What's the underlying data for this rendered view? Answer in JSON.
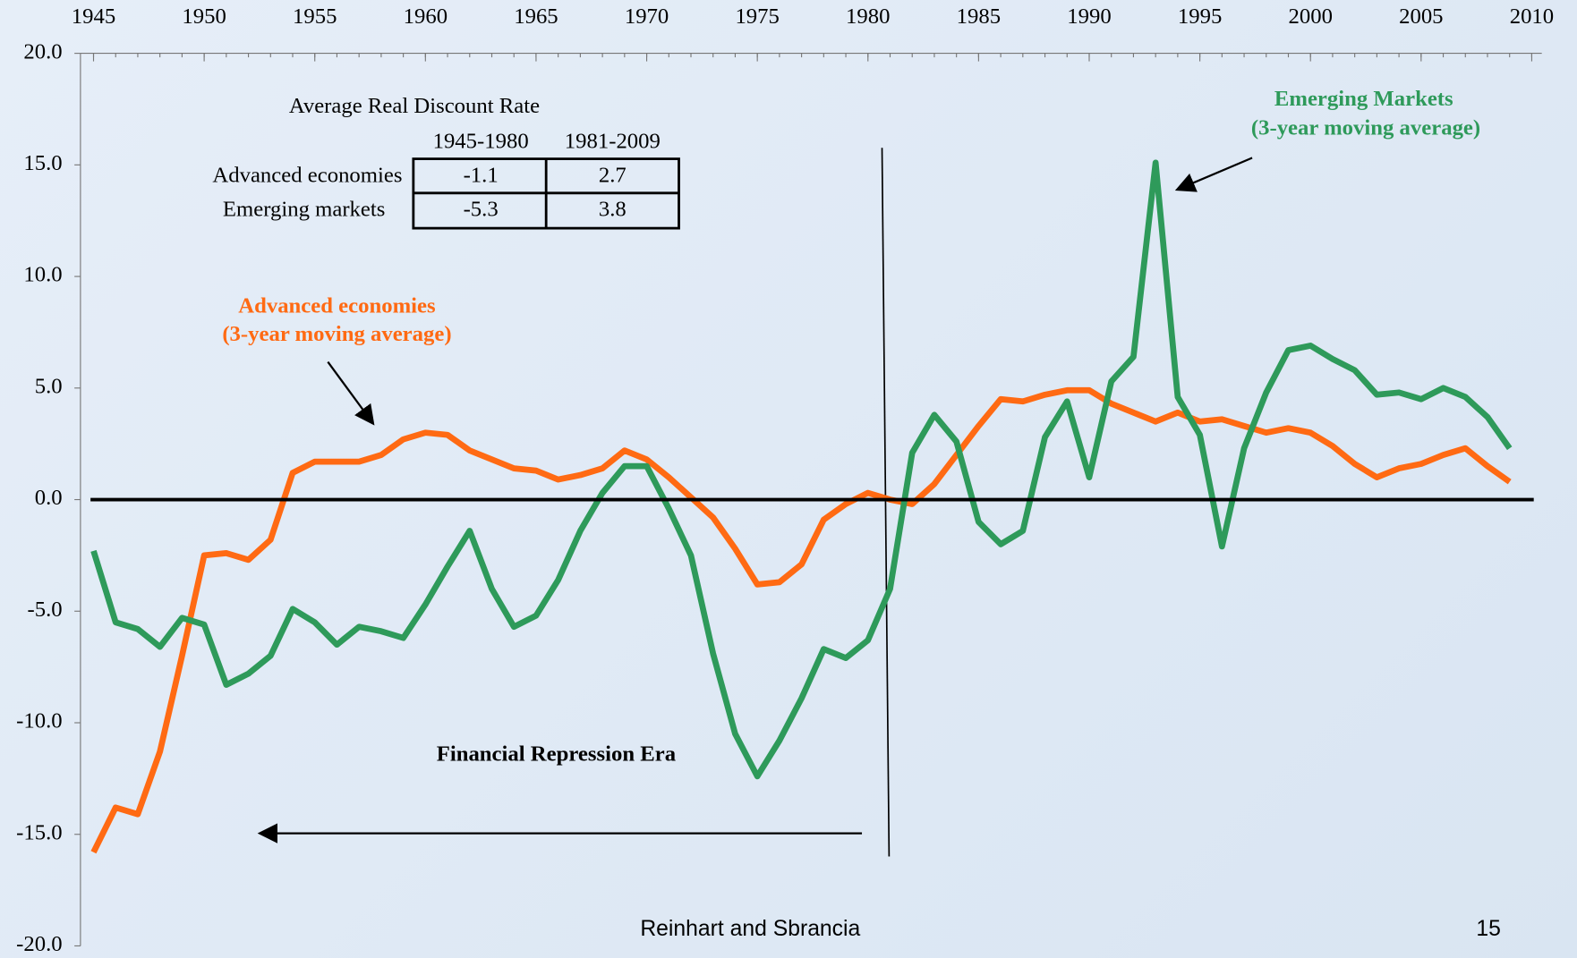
{
  "chart_data": {
    "type": "line",
    "xlim": [
      1945,
      2010
    ],
    "xticks": [
      1945,
      1950,
      1955,
      1960,
      1965,
      1970,
      1975,
      1980,
      1985,
      1990,
      1995,
      2000,
      2005,
      2010
    ],
    "ylim": [
      -20,
      20
    ],
    "yticks": [
      {
        "value": 20,
        "label": "20.0"
      },
      {
        "value": 15,
        "label": "15.0"
      },
      {
        "value": 10,
        "label": "10.0"
      },
      {
        "value": 5,
        "label": "5.0"
      },
      {
        "value": 0,
        "label": "0.0"
      },
      {
        "value": -5,
        "label": "-5.0"
      },
      {
        "value": -10,
        "label": "-10.0"
      },
      {
        "value": -15,
        "label": "-15.0"
      },
      {
        "value": -20,
        "label": "-20.0"
      }
    ],
    "x": [
      1945,
      1946,
      1947,
      1948,
      1949,
      1950,
      1951,
      1952,
      1953,
      1954,
      1955,
      1956,
      1957,
      1958,
      1959,
      1960,
      1961,
      1962,
      1963,
      1964,
      1965,
      1966,
      1967,
      1968,
      1969,
      1970,
      1971,
      1972,
      1973,
      1974,
      1975,
      1976,
      1977,
      1978,
      1979,
      1980,
      1981,
      1982,
      1983,
      1984,
      1985,
      1986,
      1987,
      1988,
      1989,
      1990,
      1991,
      1992,
      1993,
      1994,
      1995,
      1996,
      1997,
      1998,
      1999,
      2000,
      2001,
      2002,
      2003,
      2004,
      2005,
      2006,
      2007,
      2008,
      2009
    ],
    "series": [
      {
        "name": "Advanced economies",
        "color": "#ff6a13",
        "values": [
          -15.8,
          -13.8,
          -14.1,
          -11.3,
          -7,
          -2.5,
          -2.4,
          -2.7,
          -1.8,
          1.2,
          1.7,
          1.7,
          1.7,
          2.0,
          2.7,
          3.0,
          2.9,
          2.2,
          1.8,
          1.4,
          1.3,
          0.9,
          1.1,
          1.4,
          2.2,
          1.8,
          1.0,
          0.1,
          -0.8,
          -2.2,
          -3.8,
          -3.7,
          -2.9,
          -0.9,
          -0.2,
          0.3,
          0.0,
          -0.2,
          0.7,
          2.0,
          3.3,
          4.5,
          4.4,
          4.7,
          4.9,
          4.9,
          4.3,
          3.9,
          3.5,
          3.9,
          3.5,
          3.6,
          3.3,
          3.0,
          3.2,
          3.0,
          2.4,
          1.6,
          1.0,
          1.4,
          1.6,
          2.0,
          2.3,
          1.5,
          0.8
        ]
      },
      {
        "name": "Emerging markets",
        "color": "#2e9a5a",
        "values": [
          -2.3,
          -5.5,
          -5.8,
          -6.6,
          -5.3,
          -5.6,
          -8.3,
          -7.8,
          -7.0,
          -4.9,
          -5.5,
          -6.5,
          -5.7,
          -5.9,
          -6.2,
          -4.7,
          -3.0,
          -1.4,
          -4.0,
          -5.7,
          -5.2,
          -3.6,
          -1.4,
          0.3,
          1.5,
          1.5,
          -0.4,
          -2.5,
          -6.9,
          -10.5,
          -12.4,
          -10.8,
          -8.9,
          -6.7,
          -7.1,
          -6.3,
          -4.0,
          2.1,
          3.8,
          2.6,
          -1.0,
          -2.0,
          -1.4,
          2.8,
          4.4,
          1.0,
          5.3,
          6.4,
          15.1,
          4.6,
          2.9,
          -2.1,
          2.3,
          4.8,
          6.7,
          6.9,
          6.3,
          5.8,
          4.7,
          4.8,
          4.5,
          5.0,
          4.6,
          3.7,
          2.3
        ]
      }
    ],
    "annotations": {
      "emerging": [
        "Emerging Markets",
        "(3-year moving average)"
      ],
      "advanced": [
        "Advanced economies",
        "(3-year moving average)"
      ],
      "era": "Financial Repression Era"
    },
    "table": {
      "title": "Average Real Discount Rate",
      "columns": [
        "1945-1980",
        "1981-2009"
      ],
      "rows": [
        {
          "label": "Advanced economies",
          "values": [
            -1.1,
            2.7
          ]
        },
        {
          "label": "Emerging markets",
          "values": [
            -5.3,
            3.8
          ]
        }
      ]
    }
  },
  "footer": {
    "source": "Reinhart and Sbrancia",
    "page": "15"
  }
}
